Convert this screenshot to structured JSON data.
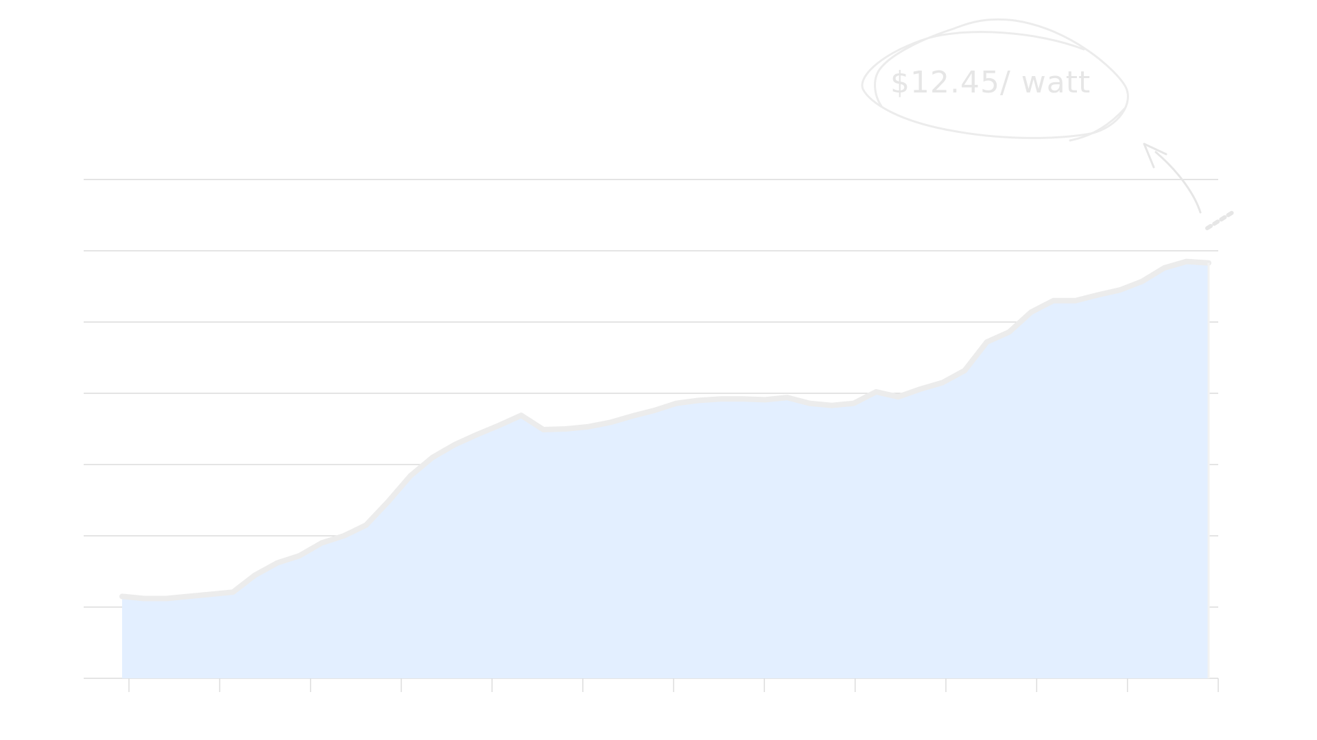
{
  "chart_data": {
    "type": "area",
    "title": "",
    "xlabel": "",
    "ylabel": "",
    "x_ticks": 13,
    "gridlines": 8,
    "grid": true,
    "legend": "none",
    "ylim": [
      0,
      7
    ],
    "x": [
      0,
      1,
      2,
      3,
      4,
      5,
      6,
      7,
      8,
      9,
      10,
      11,
      12,
      13,
      14,
      15,
      16,
      17,
      18,
      19,
      20,
      21,
      22,
      23,
      24,
      25,
      26,
      27,
      28,
      29,
      30,
      31,
      32,
      33,
      34,
      35,
      36,
      37,
      38,
      39,
      40,
      41,
      42,
      43,
      44,
      45,
      46,
      47,
      48,
      49
    ],
    "series": [
      {
        "values": [
          1.15,
          1.12,
          1.12,
          1.15,
          1.18,
          1.21,
          1.45,
          1.62,
          1.72,
          1.9,
          2.0,
          2.15,
          2.48,
          2.84,
          3.1,
          3.28,
          3.42,
          3.55,
          3.69,
          3.49,
          3.5,
          3.53,
          3.59,
          3.68,
          3.76,
          3.86,
          3.9,
          3.92,
          3.92,
          3.91,
          3.94,
          3.86,
          3.83,
          3.86,
          4.02,
          3.95,
          4.06,
          4.15,
          4.32,
          4.72,
          4.86,
          5.14,
          5.3,
          5.3,
          5.38,
          5.45,
          5.57,
          5.76,
          5.85,
          5.83
        ],
        "color": "#e3efff"
      }
    ],
    "annotation": {
      "text": "$12.45/ watt"
    },
    "colors": {
      "area_fill": "#e3efff",
      "line": "#ececec",
      "grid": "#dcdcdc",
      "annotation": "#e6e6e6"
    }
  }
}
